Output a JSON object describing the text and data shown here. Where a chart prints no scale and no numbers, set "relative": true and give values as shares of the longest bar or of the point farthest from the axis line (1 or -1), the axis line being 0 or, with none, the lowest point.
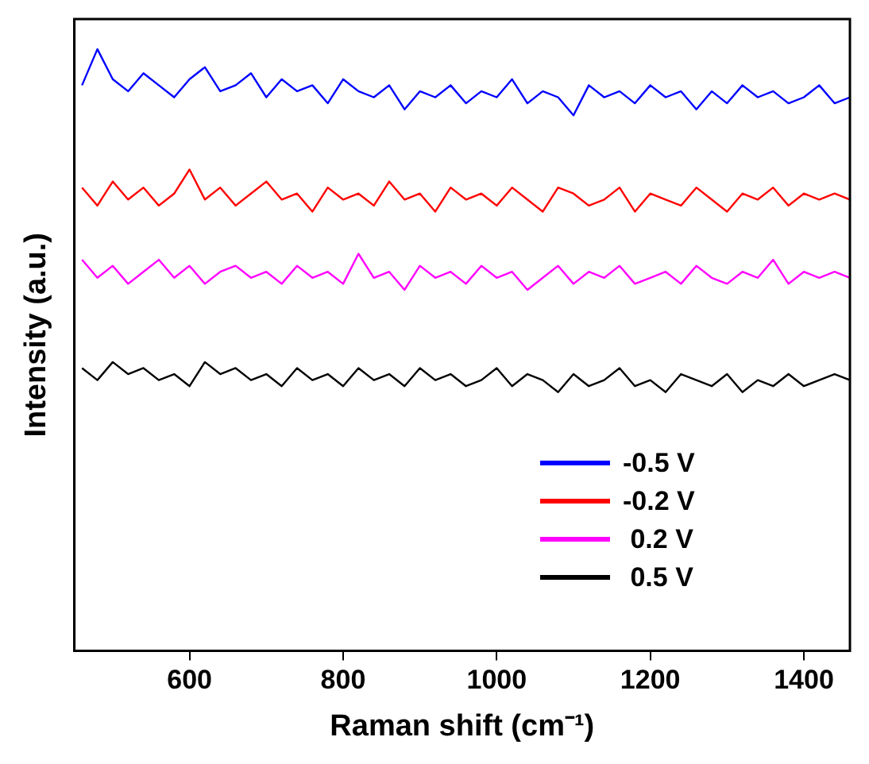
{
  "chart_data": {
    "type": "line",
    "xlabel": "Raman shift (cm⁻¹)",
    "ylabel": "Intensity (a.u.)",
    "relative": true,
    "grid": false,
    "legend": "bottom right",
    "marker": "none",
    "line_style": "solid",
    "x": [
      460,
      480,
      500,
      520,
      540,
      560,
      580,
      600,
      620,
      640,
      660,
      680,
      700,
      720,
      740,
      760,
      780,
      800,
      820,
      840,
      860,
      880,
      900,
      920,
      940,
      960,
      980,
      1000,
      1020,
      1040,
      1060,
      1080,
      1100,
      1120,
      1140,
      1160,
      1180,
      1200,
      1220,
      1240,
      1260,
      1280,
      1300,
      1320,
      1340,
      1360,
      1380,
      1400,
      1420,
      1440,
      1460
    ],
    "xlim": [
      450,
      1460
    ],
    "xticks": [
      600,
      800,
      1000,
      1200,
      1400
    ],
    "series": [
      {
        "name": "-0.5 V",
        "color": "#0000ff",
        "values": [
          0.94,
          1.0,
          0.95,
          0.93,
          0.96,
          0.94,
          0.92,
          0.95,
          0.97,
          0.93,
          0.94,
          0.96,
          0.92,
          0.95,
          0.93,
          0.94,
          0.91,
          0.95,
          0.93,
          0.92,
          0.94,
          0.9,
          0.93,
          0.92,
          0.94,
          0.91,
          0.93,
          0.92,
          0.95,
          0.91,
          0.93,
          0.92,
          0.89,
          0.94,
          0.92,
          0.93,
          0.91,
          0.94,
          0.92,
          0.93,
          0.9,
          0.93,
          0.91,
          0.94,
          0.92,
          0.93,
          0.91,
          0.92,
          0.94,
          0.91,
          0.92
        ]
      },
      {
        "name": "-0.2 V",
        "color": "#ff0000",
        "values": [
          0.77,
          0.74,
          0.78,
          0.75,
          0.77,
          0.74,
          0.76,
          0.8,
          0.75,
          0.77,
          0.74,
          0.76,
          0.78,
          0.75,
          0.76,
          0.73,
          0.77,
          0.75,
          0.76,
          0.74,
          0.78,
          0.75,
          0.76,
          0.73,
          0.77,
          0.75,
          0.76,
          0.74,
          0.77,
          0.75,
          0.73,
          0.77,
          0.76,
          0.74,
          0.75,
          0.77,
          0.73,
          0.76,
          0.75,
          0.74,
          0.77,
          0.75,
          0.73,
          0.76,
          0.75,
          0.77,
          0.74,
          0.76,
          0.75,
          0.76,
          0.75
        ]
      },
      {
        "name": " 0.2 V",
        "color": "#ff00ff",
        "values": [
          0.65,
          0.62,
          0.64,
          0.61,
          0.63,
          0.65,
          0.62,
          0.64,
          0.61,
          0.63,
          0.64,
          0.62,
          0.63,
          0.61,
          0.64,
          0.62,
          0.63,
          0.61,
          0.66,
          0.62,
          0.63,
          0.6,
          0.64,
          0.62,
          0.63,
          0.61,
          0.64,
          0.62,
          0.63,
          0.6,
          0.62,
          0.64,
          0.61,
          0.63,
          0.62,
          0.64,
          0.61,
          0.62,
          0.63,
          0.61,
          0.64,
          0.62,
          0.61,
          0.63,
          0.62,
          0.65,
          0.61,
          0.63,
          0.62,
          0.63,
          0.62
        ]
      },
      {
        "name": " 0.5 V",
        "color": "#000000",
        "values": [
          0.47,
          0.45,
          0.48,
          0.46,
          0.47,
          0.45,
          0.46,
          0.44,
          0.48,
          0.46,
          0.47,
          0.45,
          0.46,
          0.44,
          0.47,
          0.45,
          0.46,
          0.44,
          0.47,
          0.45,
          0.46,
          0.44,
          0.47,
          0.45,
          0.46,
          0.44,
          0.45,
          0.47,
          0.44,
          0.46,
          0.45,
          0.43,
          0.46,
          0.44,
          0.45,
          0.47,
          0.44,
          0.45,
          0.43,
          0.46,
          0.45,
          0.44,
          0.46,
          0.43,
          0.45,
          0.44,
          0.46,
          0.44,
          0.45,
          0.46,
          0.45
        ]
      }
    ]
  }
}
